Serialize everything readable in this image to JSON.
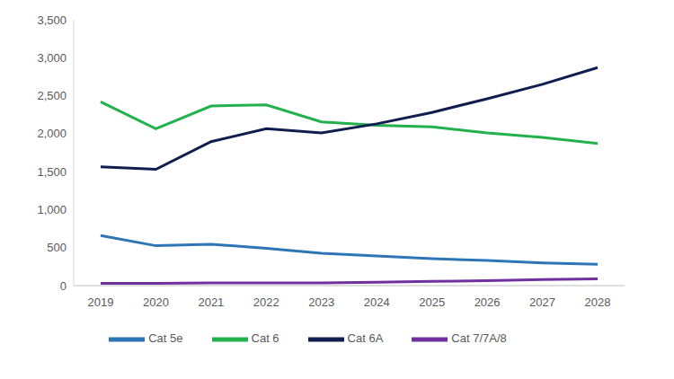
{
  "chart_data": {
    "type": "line",
    "categories": [
      "2019",
      "2020",
      "2021",
      "2022",
      "2023",
      "2024",
      "2025",
      "2026",
      "2027",
      "2028"
    ],
    "series": [
      {
        "name": "Cat 5e",
        "color": "#2e75b6",
        "values": [
          660,
          525,
          545,
          490,
          425,
          390,
          355,
          330,
          300,
          280
        ]
      },
      {
        "name": "Cat 6",
        "color": "#22b14c",
        "values": [
          2420,
          2065,
          2365,
          2380,
          2155,
          2110,
          2090,
          2010,
          1950,
          1870
        ]
      },
      {
        "name": "Cat 6A",
        "color": "#0f1e4f",
        "values": [
          1565,
          1530,
          1895,
          2065,
          2010,
          2130,
          2280,
          2460,
          2650,
          2870
        ]
      },
      {
        "name": "Cat 7/7A/8",
        "color": "#7030a0",
        "values": [
          30,
          30,
          35,
          35,
          35,
          45,
          55,
          65,
          80,
          90
        ]
      }
    ],
    "ylim": [
      0,
      3500
    ],
    "yticks": [
      0,
      500,
      {
        "value": 1000,
        "label": "1,000"
      },
      {
        "value": 1500,
        "label": "1,500"
      },
      {
        "value": 2000,
        "label": "2,000"
      },
      {
        "value": 2500,
        "label": "2,500"
      },
      {
        "value": 3000,
        "label": "3,000"
      },
      {
        "value": 3500,
        "label": "3,500"
      }
    ],
    "grid": false,
    "legend": "bottom"
  }
}
